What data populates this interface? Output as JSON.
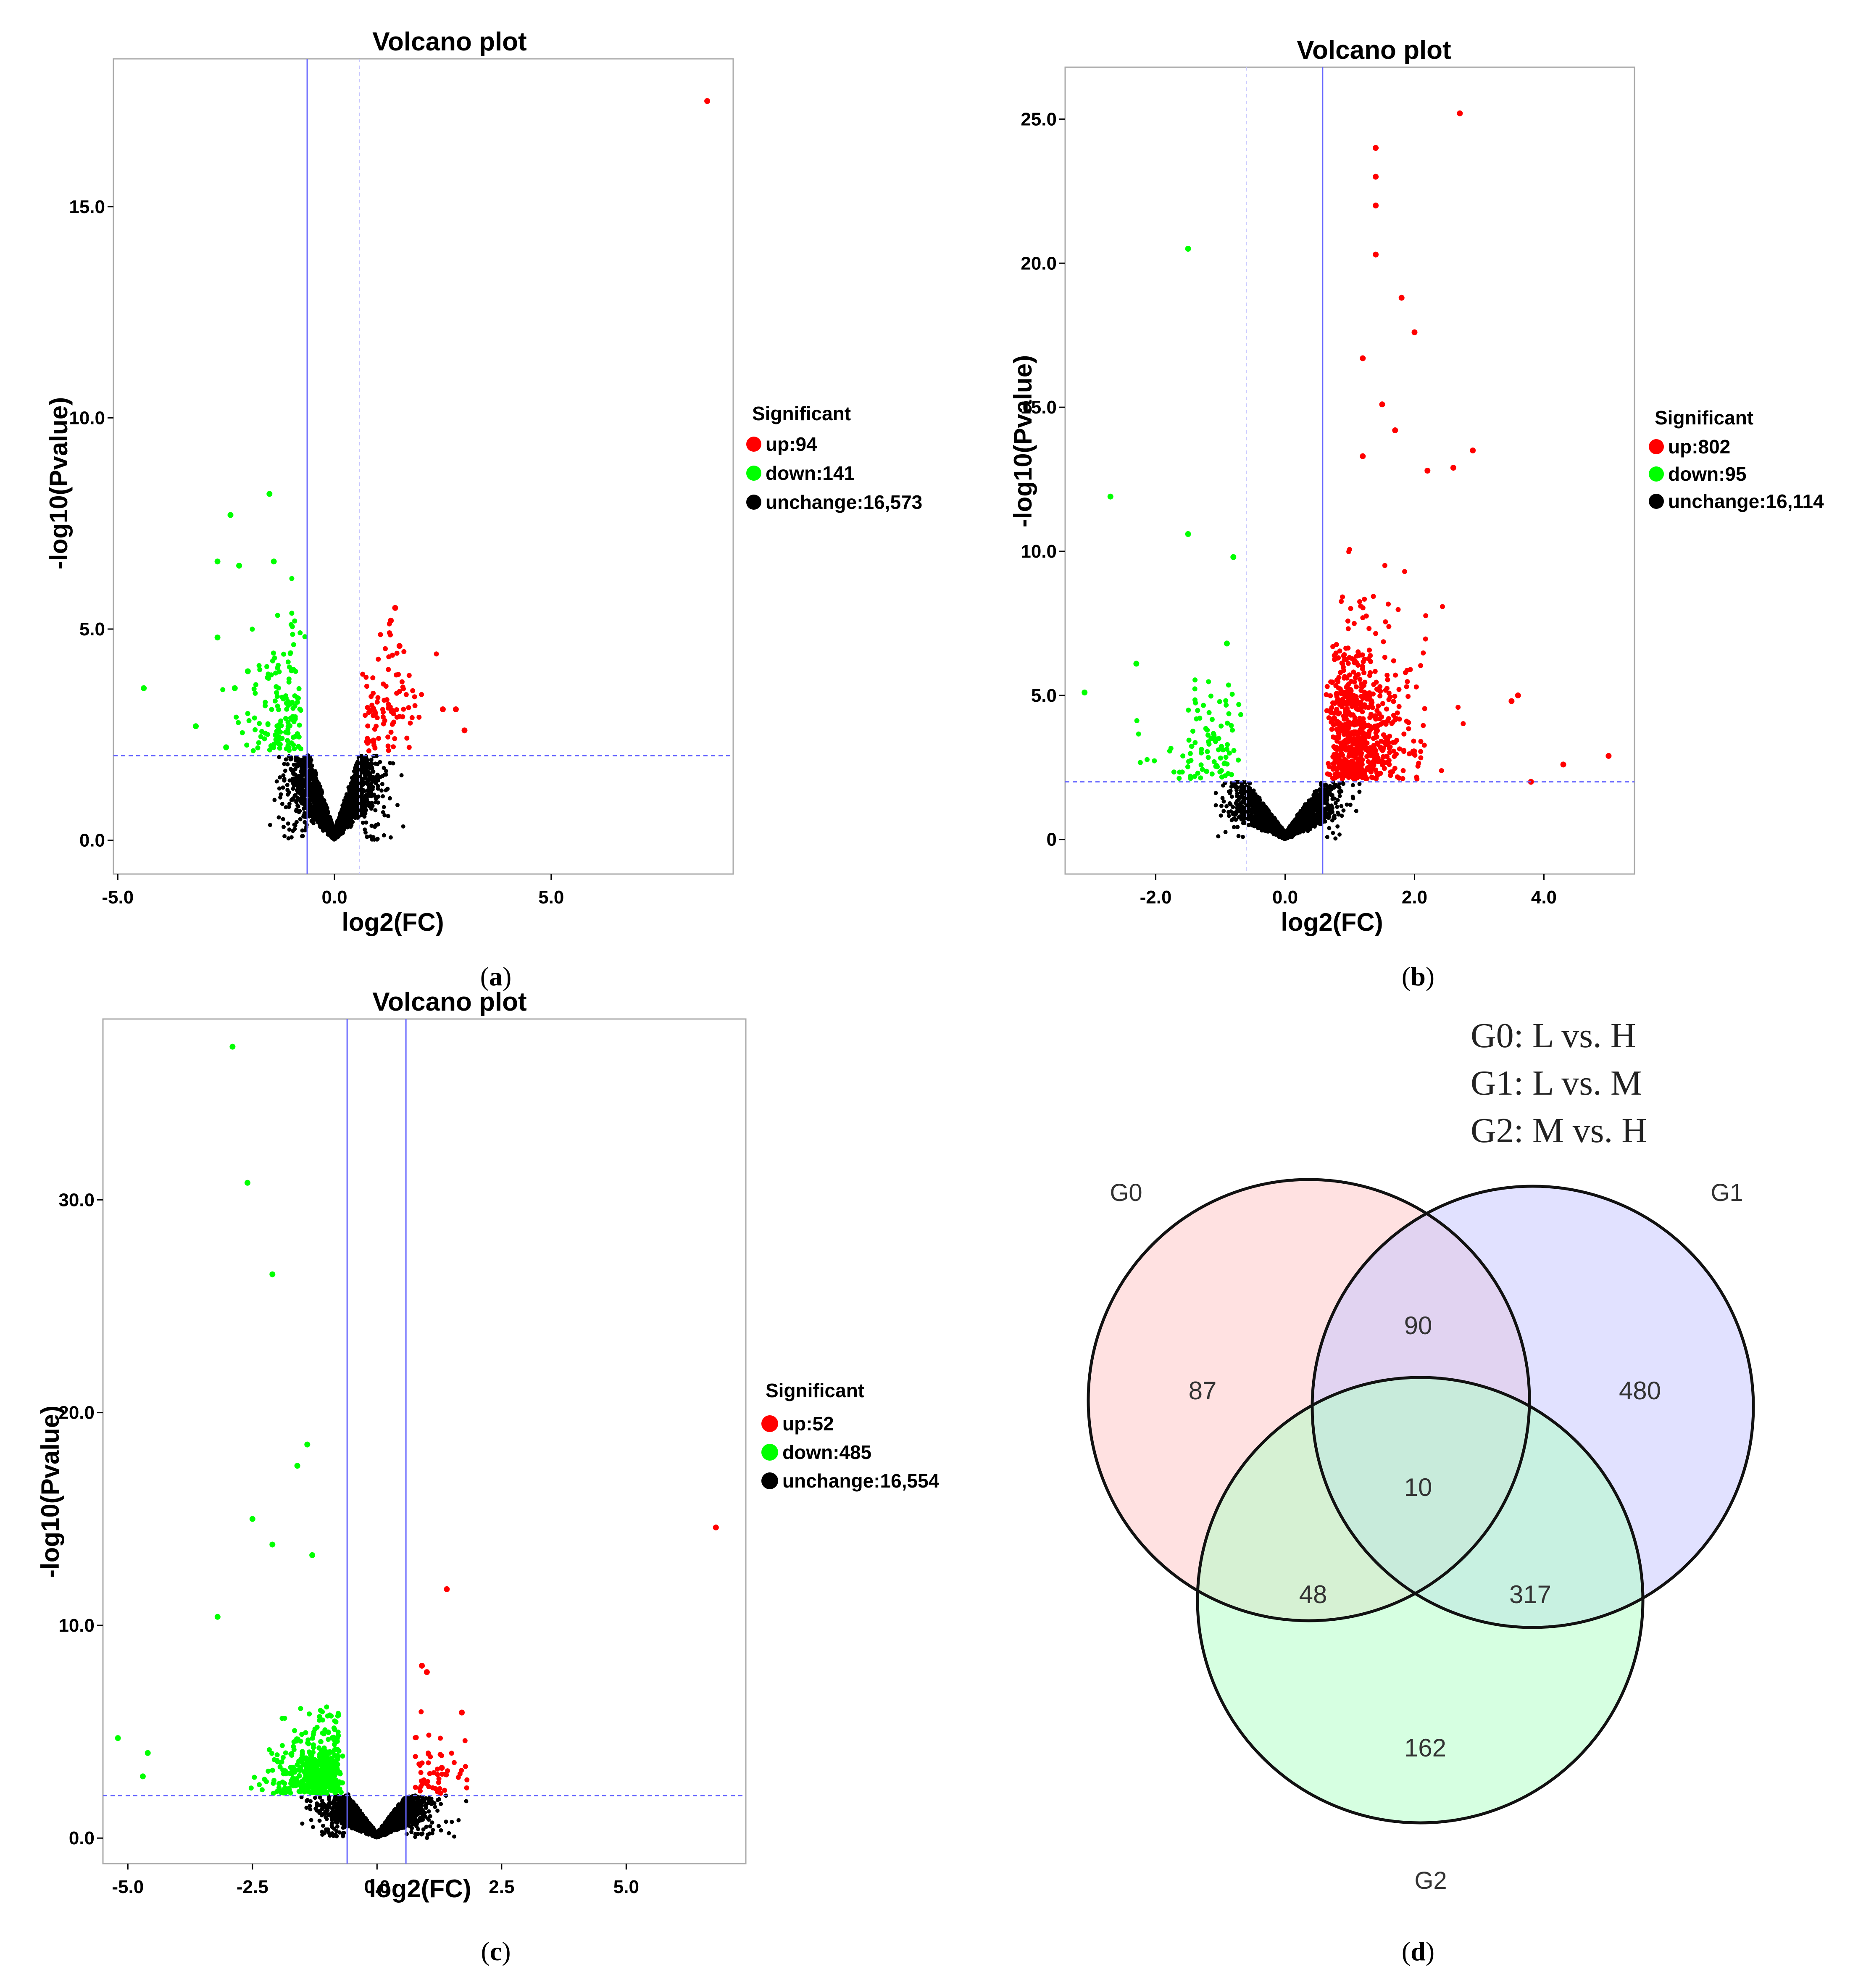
{
  "panels": {
    "a": {
      "label_open": "(",
      "label_letter": "a",
      "label_close": ")",
      "legend": {
        "title": "Significant",
        "up": "up:94",
        "down": "down:141",
        "unchange": "unchange:16,573"
      }
    },
    "b": {
      "label_open": "(",
      "label_letter": "b",
      "label_close": ")",
      "legend": {
        "title": "Significant",
        "up": "up:802",
        "down": "down:95",
        "unchange": "unchange:16,114"
      }
    },
    "c": {
      "label_open": "(",
      "label_letter": "c",
      "label_close": ")",
      "legend": {
        "title": "Significant",
        "up": "up:52",
        "down": "down:485",
        "unchange": "unchange:16,554"
      }
    },
    "d": {
      "label_open": "(",
      "label_letter": "d",
      "label_close": ")"
    }
  },
  "colors": {
    "up": "#ff0000",
    "down": "#00ff00",
    "unchange": "#000000",
    "threshold": "#6666ff"
  },
  "chart_data": [
    {
      "id": "a",
      "type": "scatter",
      "title": "Volcano plot",
      "xlabel": "log2(FC)",
      "ylabel": "-log10(Pvalue)",
      "xlim": [
        -5.1,
        9.2
      ],
      "ylim": [
        -0.8,
        18.5
      ],
      "xticks": [
        -5.0,
        0.0,
        5.0
      ],
      "xtick_labels": [
        "-5.0",
        "0.0",
        "5.0"
      ],
      "yticks": [
        0,
        5,
        10,
        15
      ],
      "ytick_labels": [
        "0.0",
        "5.0",
        "10.0",
        "15.0"
      ],
      "thresholds": {
        "x": [
          -0.63,
          0.58
        ],
        "y": 2.0,
        "x_styles": [
          "solid",
          "dashed"
        ]
      },
      "counts": {
        "up": 94,
        "down": 141,
        "unchange": 16573
      },
      "unchange_spread": {
        "xspread": 1.3,
        "ymax": 3.2
      },
      "up_points": [
        [
          8.6,
          17.5
        ],
        [
          2.5,
          3.1
        ],
        [
          3.0,
          2.6
        ],
        [
          2.8,
          3.1
        ],
        [
          1.5,
          4.6
        ],
        [
          1.3,
          5.2
        ],
        [
          1.4,
          5.5
        ]
      ],
      "down_points": [
        [
          -4.4,
          3.6
        ],
        [
          -3.2,
          2.7
        ],
        [
          -2.7,
          6.6
        ],
        [
          -2.4,
          7.7
        ],
        [
          -1.5,
          8.2
        ],
        [
          -2.2,
          6.5
        ],
        [
          -1.4,
          6.6
        ],
        [
          -2.7,
          4.8
        ],
        [
          -2.3,
          3.6
        ],
        [
          -2.0,
          4.0
        ],
        [
          -2.5,
          2.2
        ]
      ]
    },
    {
      "id": "b",
      "type": "scatter",
      "title": "Volcano plot",
      "xlabel": "log2(FC)",
      "ylabel": "-log10(Pvalue)",
      "xlim": [
        -3.4,
        5.4
      ],
      "ylim": [
        -1.2,
        26.8
      ],
      "xticks": [
        -2.0,
        0.0,
        2.0,
        4.0
      ],
      "xtick_labels": [
        "-2.0",
        "0.0",
        "2.0",
        "4.0"
      ],
      "yticks": [
        0,
        5,
        10,
        15,
        20,
        25
      ],
      "ytick_labels": [
        "0",
        "5.0",
        "10.0",
        "15.0",
        "20.0",
        "25.0"
      ],
      "thresholds": {
        "x": [
          -0.6,
          0.58
        ],
        "y": 2.0,
        "x_styles": [
          "dashed",
          "solid"
        ]
      },
      "counts": {
        "up": 802,
        "down": 95,
        "unchange": 16114
      },
      "unchange_spread": {
        "xspread": 1.0,
        "ymax": 3.2
      },
      "up_points": [
        [
          2.7,
          25.2
        ],
        [
          1.4,
          24.0
        ],
        [
          1.4,
          23.0
        ],
        [
          1.4,
          22.0
        ],
        [
          1.4,
          20.3
        ],
        [
          1.8,
          18.8
        ],
        [
          2.0,
          17.6
        ],
        [
          1.2,
          16.7
        ],
        [
          1.5,
          15.1
        ],
        [
          1.7,
          14.2
        ],
        [
          2.9,
          13.5
        ],
        [
          1.2,
          13.3
        ],
        [
          2.2,
          12.8
        ],
        [
          2.6,
          12.9
        ],
        [
          3.8,
          2.0
        ],
        [
          4.3,
          2.6
        ],
        [
          5.0,
          2.9
        ],
        [
          3.5,
          4.8
        ],
        [
          3.6,
          5.0
        ]
      ],
      "down_points": [
        [
          -1.5,
          20.5
        ],
        [
          -2.7,
          11.9
        ],
        [
          -1.5,
          10.6
        ],
        [
          -0.8,
          9.8
        ],
        [
          -2.3,
          6.1
        ],
        [
          -3.1,
          5.1
        ],
        [
          -0.9,
          6.8
        ]
      ]
    },
    {
      "id": "c",
      "type": "scatter",
      "title": "Volcano plot",
      "xlabel": "log2(FC)",
      "ylabel": "-log10(Pvalue)",
      "xlim": [
        -5.5,
        7.4
      ],
      "ylim": [
        -1.2,
        38.5
      ],
      "xticks": [
        -5.0,
        -2.5,
        0.0,
        2.5,
        5.0
      ],
      "xtick_labels": [
        "-5.0",
        "-2.5",
        "0.0",
        "2.5",
        "5.0"
      ],
      "yticks": [
        0,
        10,
        20,
        30
      ],
      "ytick_labels": [
        "0.0",
        "10.0",
        "20.0",
        "30.0"
      ],
      "thresholds": {
        "x": [
          -0.6,
          0.58
        ],
        "y": 2.0,
        "x_styles": [
          "solid",
          "solid"
        ]
      },
      "counts": {
        "up": 52,
        "down": 485,
        "unchange": 16554
      },
      "unchange_spread": {
        "xspread": 1.3,
        "ymax": 3.2
      },
      "up_points": [
        [
          6.8,
          14.6
        ],
        [
          1.4,
          11.7
        ],
        [
          0.9,
          8.1
        ],
        [
          1.0,
          7.8
        ],
        [
          1.7,
          5.9
        ],
        [
          1.3,
          3.3
        ]
      ],
      "down_points": [
        [
          -2.9,
          37.2
        ],
        [
          -2.6,
          30.8
        ],
        [
          -2.1,
          26.5
        ],
        [
          -1.4,
          18.5
        ],
        [
          -1.6,
          17.5
        ],
        [
          -2.5,
          15.0
        ],
        [
          -1.3,
          13.3
        ],
        [
          -2.1,
          13.8
        ],
        [
          -3.2,
          10.4
        ],
        [
          -5.2,
          4.7
        ],
        [
          -4.6,
          4.0
        ],
        [
          -4.7,
          2.9
        ]
      ]
    },
    {
      "id": "d",
      "type": "venn",
      "comparisons": [
        "G0: L vs. H",
        "G1: L vs. M",
        "G2: M vs. H"
      ],
      "sets": [
        "G0",
        "G1",
        "G2"
      ],
      "regions": {
        "G0_only": "87",
        "G1_only": "480",
        "G2_only": "162",
        "G0_G1": "90",
        "G0_G2": "48",
        "G1_G2": "317",
        "all": "10"
      },
      "set_colors": [
        "#ffc8c8",
        "#c8c8ff",
        "#b4ffc8"
      ]
    }
  ]
}
